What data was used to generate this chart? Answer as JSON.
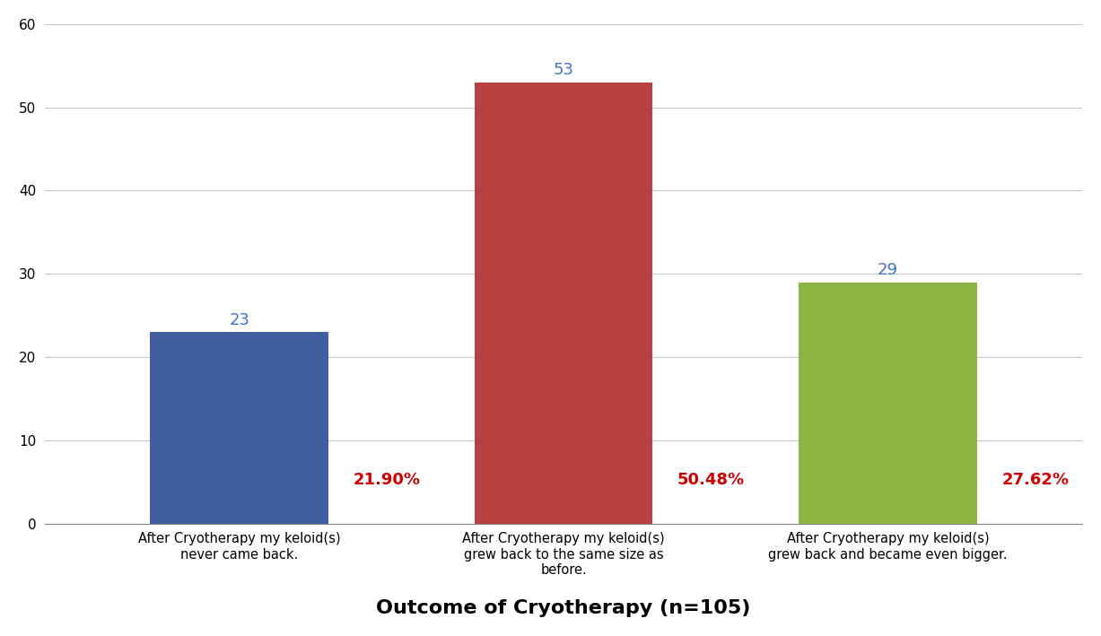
{
  "categories": [
    "After Cryotherapy my keloid(s)\nnever came back.",
    "After Cryotherapy my keloid(s)\ngrew back to the same size as\nbefore.",
    "After Cryotherapy my keloid(s)\ngrew back and became even bigger."
  ],
  "values": [
    23,
    53,
    29
  ],
  "percentages": [
    "21.90%",
    "50.48%",
    "27.62%"
  ],
  "bar_colors": [
    "#3F5FA0",
    "#B94040",
    "#8DB544"
  ],
  "count_label_color": "#4472C4",
  "pct_label_color": "#CC0000",
  "xlabel": "Outcome of Cryotherapy (n=105)",
  "ylim": [
    0,
    60
  ],
  "yticks": [
    0,
    10,
    20,
    30,
    40,
    50,
    60
  ],
  "background_color": "#FFFFFF",
  "grid_color": "#C8C8C8",
  "bar_width": 0.55,
  "count_fontsize": 13,
  "pct_fontsize": 13,
  "xlabel_fontsize": 16,
  "tick_label_fontsize": 10.5
}
